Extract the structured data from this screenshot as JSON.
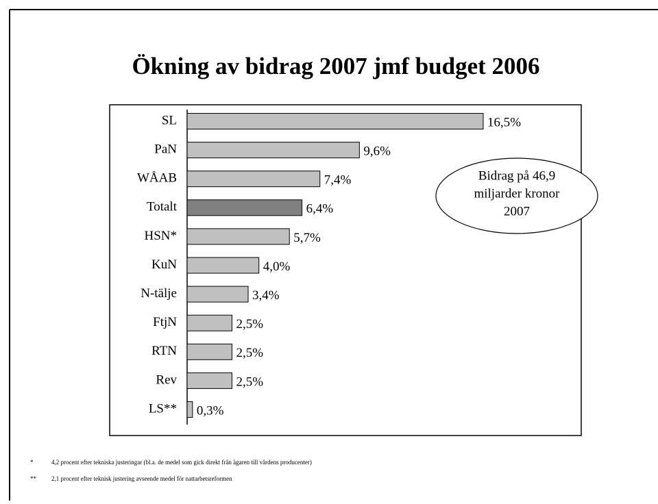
{
  "chart_data": {
    "type": "hbar",
    "title": "Ökning av bidrag 2007 jmf budget 2006",
    "categories": [
      "SL",
      "PaN",
      "WÅAB",
      "Totalt",
      "HSN*",
      "KuN",
      "N-tälje",
      "FtjN",
      "RTN",
      "Rev",
      "LS**"
    ],
    "values": [
      16.5,
      9.6,
      7.4,
      6.4,
      5.7,
      4.0,
      3.4,
      2.5,
      2.5,
      2.5,
      0.3
    ],
    "value_labels": [
      "16,5%",
      "9,6%",
      "7,4%",
      "6,4%",
      "5,7%",
      "4,0%",
      "3,4%",
      "2,5%",
      "2,5%",
      "2,5%",
      "0,3%"
    ],
    "colors": [
      "#c0c0c0",
      "#c0c0c0",
      "#c0c0c0",
      "#808080",
      "#c0c0c0",
      "#c0c0c0",
      "#c0c0c0",
      "#c0c0c0",
      "#c0c0c0",
      "#c0c0c0",
      "#c0c0c0"
    ],
    "annotation": [
      "Bidrag på 46,9",
      "miljarder kronor",
      "2007"
    ],
    "footnotes": [
      {
        "marker": "*",
        "text": "4,2 procent efter tekniska justeringar (bl.a. de medel som gick direkt från ägaren till vårdens producenter)"
      },
      {
        "marker": "**",
        "text": "2,1 procent efter teknisk justering avseende medel för nattarbetsreformen"
      }
    ]
  }
}
